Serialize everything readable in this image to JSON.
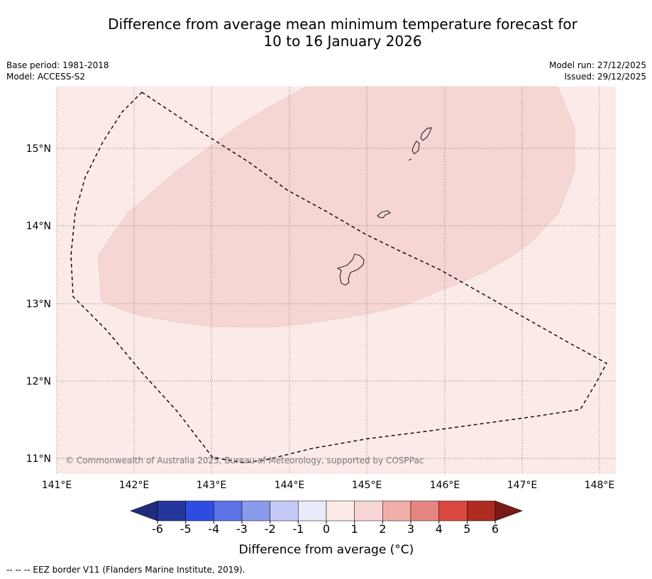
{
  "title": {
    "line1": "Difference from average mean minimum temperature forecast for",
    "line2": "10 to 16 January 2026"
  },
  "meta": {
    "base_period": "Base period: 1981-2018",
    "model": "Model: ACCESS-S2",
    "model_run": "Model run: 27/12/2025",
    "issued": "Issued: 29/12/2025"
  },
  "map": {
    "lon_ticks": [
      "141°E",
      "142°E",
      "143°E",
      "144°E",
      "145°E",
      "146°E",
      "147°E",
      "148°E"
    ],
    "lat_ticks": [
      "15°N",
      "14°N",
      "13°N",
      "12°N",
      "11°N"
    ],
    "copyright": "© Commonwealth of Australia 2025, Bureau of Meteorology, supported by COSPPac",
    "background_color": "#fbeae8",
    "anomaly_region_color": "#f5d6d4",
    "anomaly_region_value": "0 to 1"
  },
  "colorbar": {
    "labels": [
      "-6",
      "-5",
      "-4",
      "-3",
      "-2",
      "-1",
      "0",
      "1",
      "2",
      "3",
      "4",
      "5",
      "6"
    ],
    "colors": [
      "#25379b",
      "#2e4de0",
      "#5c73e6",
      "#8b99eb",
      "#c3c8f4",
      "#e8ebfa",
      "#fbeae8",
      "#f5d6d4",
      "#eeaeaa",
      "#e68580",
      "#da4a40",
      "#ae2b22"
    ],
    "under_color": "#1f2d7a",
    "over_color": "#7a1a17",
    "title": "Difference from average (°C)"
  },
  "legend": {
    "eez_label": "--  --  -- EEZ border V11 (Flanders Marine Institute, 2019)."
  }
}
